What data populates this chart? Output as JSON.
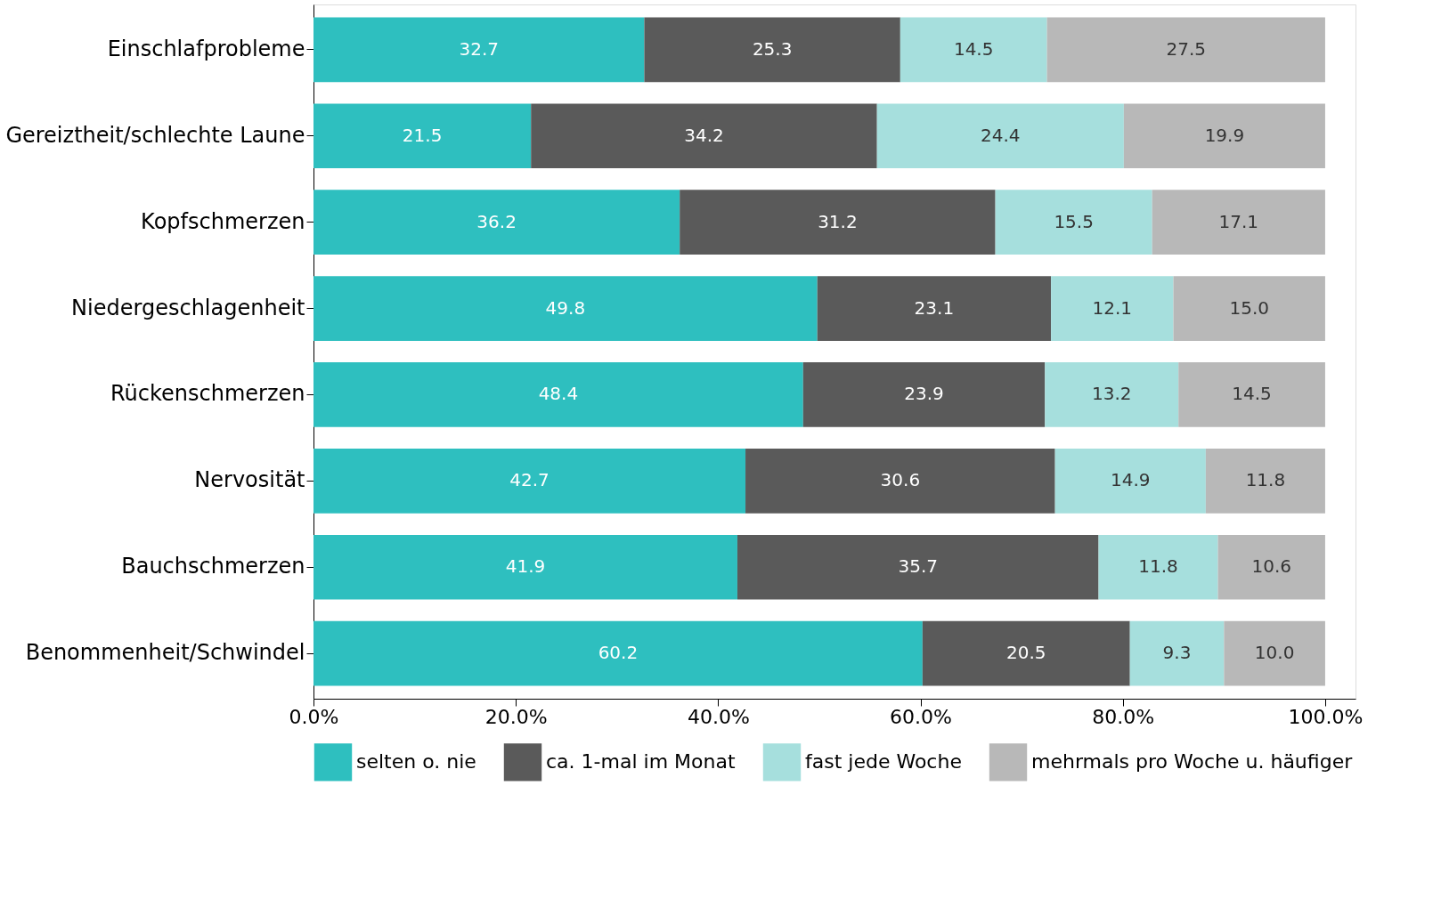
{
  "chart_data": {
    "type": "bar",
    "orientation": "horizontal",
    "stacked": true,
    "grid": false,
    "legend": "bottom",
    "categories": [
      "Einschlafprobleme",
      "Gereiztheit/schlechte Laune",
      "Kopfschmerzen",
      "Niedergeschlagenheit",
      "Rückenschmerzen",
      "Nervosität",
      "Bauchschmerzen",
      "Benommenheit/Schwindel"
    ],
    "series": [
      {
        "name": "selten o. nie",
        "color": "#2ebfbf",
        "values": [
          32.7,
          21.5,
          36.2,
          49.8,
          48.4,
          42.7,
          41.9,
          60.2
        ],
        "value_labels": [
          "32.7",
          "21.5",
          "36.2",
          "49.8",
          "48.4",
          "42.7",
          "41.9",
          "60.2"
        ]
      },
      {
        "name": "ca. 1-mal im Monat",
        "color": "#5a5a5a",
        "values": [
          25.3,
          34.2,
          31.2,
          23.1,
          23.9,
          30.6,
          35.7,
          20.5
        ],
        "value_labels": [
          "25.3",
          "34.2",
          "31.2",
          "23.1",
          "23.9",
          "30.6",
          "35.7",
          "20.5"
        ]
      },
      {
        "name": "fast jede Woche",
        "color": "#a6dfdd",
        "values": [
          14.5,
          24.4,
          15.5,
          12.1,
          13.2,
          14.9,
          11.8,
          9.3
        ],
        "value_labels": [
          "14.5",
          "24.4",
          "15.5",
          "12.1",
          "13.2",
          "14.9",
          "11.8",
          "9.3"
        ]
      },
      {
        "name": "mehrmals pro Woche u. häufiger",
        "color": "#b8b8b8",
        "values": [
          27.5,
          19.9,
          17.1,
          15.0,
          14.5,
          11.8,
          10.6,
          10.0
        ],
        "value_labels": [
          "27.5",
          "19.9",
          "17.1",
          "15.0",
          "14.5",
          "11.8",
          "10.6",
          "10.0"
        ]
      }
    ],
    "xlim": [
      0,
      103
    ],
    "xticks": [
      {
        "value": 0,
        "label": "0.0%"
      },
      {
        "value": 20,
        "label": "20.0%"
      },
      {
        "value": 40,
        "label": "40.0%"
      },
      {
        "value": 60,
        "label": "60.0%"
      },
      {
        "value": 80,
        "label": "80.0%"
      },
      {
        "value": 100,
        "label": "100.0%"
      }
    ]
  }
}
